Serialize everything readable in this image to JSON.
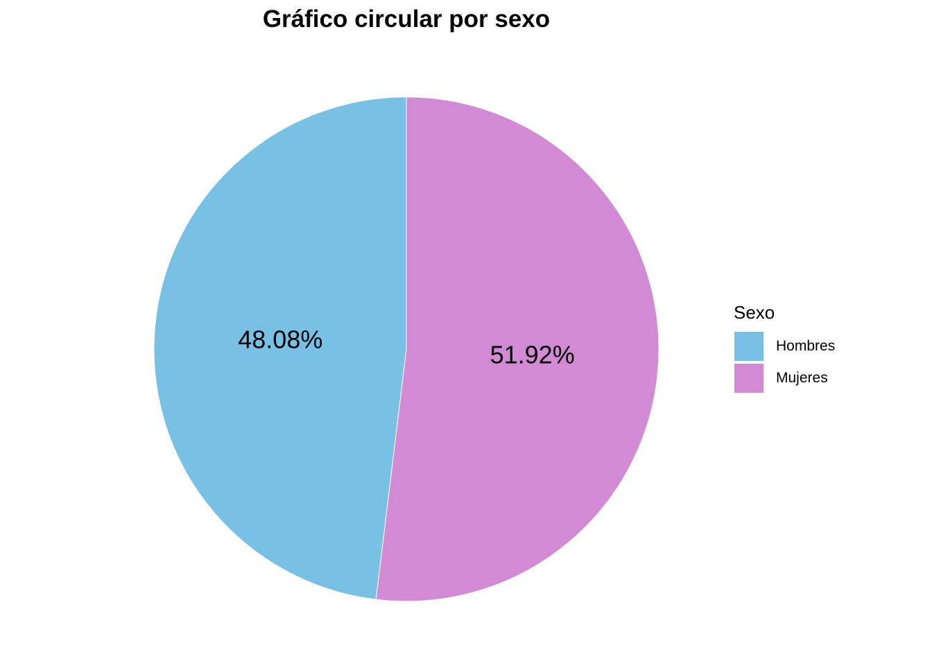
{
  "chart_data": {
    "type": "pie",
    "title": "Gráfico circular por sexo",
    "categories": [
      "Hombres",
      "Mujeres"
    ],
    "values": [
      48.08,
      51.92
    ],
    "labels": [
      "48.08%",
      "51.92%"
    ],
    "colors": [
      "#78c1e4",
      "#d28ad4"
    ],
    "legend": {
      "title": "Sexo",
      "placement": "right"
    }
  }
}
